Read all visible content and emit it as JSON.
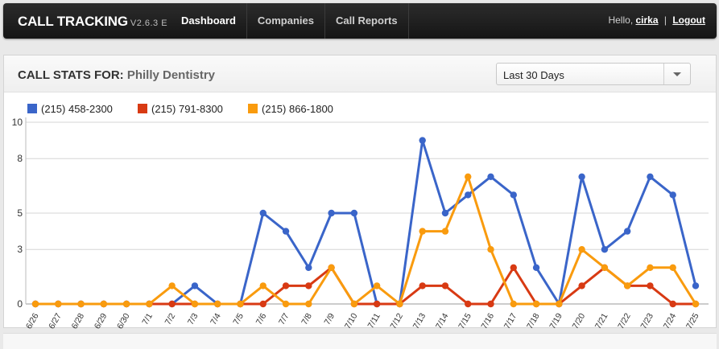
{
  "topbar": {
    "brand": "CALL TRACKING",
    "version": "V2.6.3 E",
    "nav": [
      {
        "label": "Dashboard",
        "active": true
      },
      {
        "label": "Companies",
        "active": false
      },
      {
        "label": "Call Reports",
        "active": false
      }
    ],
    "user": {
      "greeting": "Hello,",
      "username": "cirka",
      "separator": "|",
      "logout": "Logout"
    }
  },
  "panel": {
    "title_prefix": "CALL STATS FOR:",
    "company": "Philly Dentistry",
    "range_select": {
      "value": "Last 30 Days"
    }
  },
  "chart_data": {
    "type": "line",
    "x": [
      "6/26",
      "6/27",
      "6/28",
      "6/29",
      "6/30",
      "7/1",
      "7/2",
      "7/3",
      "7/4",
      "7/5",
      "7/6",
      "7/7",
      "7/8",
      "7/9",
      "7/10",
      "7/11",
      "7/12",
      "7/13",
      "7/14",
      "7/15",
      "7/16",
      "7/17",
      "7/18",
      "7/19",
      "7/20",
      "7/21",
      "7/22",
      "7/23",
      "7/24",
      "7/25"
    ],
    "ylim": [
      0,
      10
    ],
    "yticks": [
      0,
      3,
      5,
      8,
      10
    ],
    "legend_position": "top-left",
    "grid": true,
    "series": [
      {
        "name": "(215) 458-2300",
        "color": "#3a65c9",
        "values": [
          0,
          0,
          0,
          0,
          0,
          0,
          0,
          1,
          0,
          0,
          5,
          4,
          2,
          5,
          5,
          0,
          0,
          9,
          5,
          6,
          7,
          6,
          2,
          0,
          7,
          3,
          4,
          7,
          6,
          1
        ]
      },
      {
        "name": "(215) 791-8300",
        "color": "#d83a13",
        "values": [
          0,
          0,
          0,
          0,
          0,
          0,
          0,
          0,
          0,
          0,
          0,
          1,
          1,
          2,
          0,
          0,
          0,
          1,
          1,
          0,
          0,
          2,
          0,
          0,
          1,
          2,
          1,
          1,
          0,
          0
        ]
      },
      {
        "name": "(215) 866-1800",
        "color": "#f99b0e",
        "values": [
          0,
          0,
          0,
          0,
          0,
          0,
          1,
          0,
          0,
          0,
          1,
          0,
          0,
          2,
          0,
          1,
          0,
          4,
          4,
          7,
          3,
          0,
          0,
          0,
          3,
          2,
          1,
          2,
          2,
          0
        ]
      }
    ]
  }
}
